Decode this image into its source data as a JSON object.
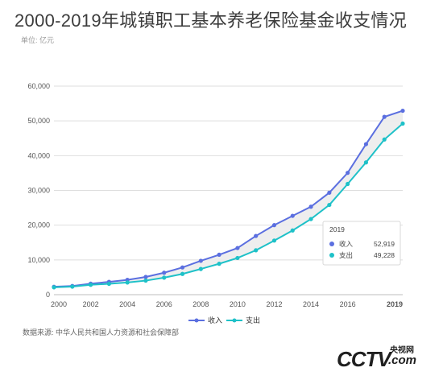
{
  "header": {
    "title": "2000-2019年城镇职工基本养老保险基金收支情况",
    "unit": "单位: 亿元"
  },
  "footer": {
    "source": "数据来源: 中华人民共和国人力资源和社会保障部"
  },
  "logo": {
    "mark": "CCTV",
    "cn": "央视网",
    "com": ".com"
  },
  "colors": {
    "income": "#5b6fe0",
    "expense": "#1ec1c8",
    "fill": "#ececec",
    "grid": "#dedede"
  },
  "tooltip": {
    "year": "2019",
    "income_label": "收入",
    "income_value": "52,919",
    "expense_label": "支出",
    "expense_value": "49,228"
  },
  "chart_data": {
    "type": "line",
    "title": "2000-2019年城镇职工基本养老保险基金收支情况",
    "x": [
      2000,
      2001,
      2002,
      2003,
      2004,
      2005,
      2006,
      2007,
      2008,
      2009,
      2010,
      2011,
      2012,
      2013,
      2014,
      2015,
      2016,
      2017,
      2018,
      2019
    ],
    "series": [
      {
        "name": "收入",
        "values": [
          2278,
          2489,
          3172,
          3680,
          4258,
          5093,
          6310,
          7834,
          9740,
          11491,
          13420,
          16895,
          20001,
          22680,
          25310,
          29341,
          35058,
          43310,
          51168,
          52919
        ]
      },
      {
        "name": "支出",
        "values": [
          2115,
          2321,
          2843,
          3122,
          3502,
          4040,
          4897,
          5965,
          7390,
          8894,
          10555,
          12765,
          15562,
          18470,
          21755,
          25813,
          31854,
          38052,
          44645,
          49228
        ]
      }
    ],
    "x_ticks": [
      "2000",
      "2002",
      "2004",
      "2006",
      "2008",
      "2010",
      "2012",
      "2014",
      "2016",
      "2019"
    ],
    "y_ticks": [
      "0",
      "10,000",
      "20,000",
      "30,000",
      "40,000",
      "50,000",
      "60,000"
    ],
    "xlim": [
      2000,
      2019
    ],
    "ylim": [
      0,
      60000
    ],
    "grid": true,
    "legend": "bottom-center"
  }
}
